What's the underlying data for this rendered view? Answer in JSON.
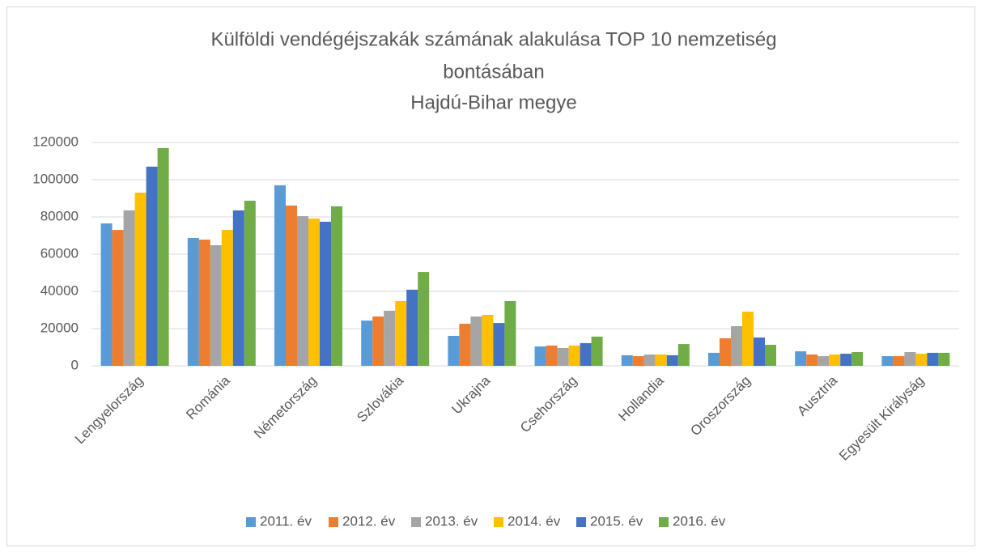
{
  "chart_data": {
    "type": "bar",
    "title": [
      "Külföldi vendégéjszakák számának alakulása TOP 10 nemzetiség",
      "bontásában",
      "Hajdú-Bihar megye"
    ],
    "categories": [
      "Lengyelország",
      "Románia",
      "Németország",
      "Szlovákia",
      "Ukrajna",
      "Csehország",
      "Hollandia",
      "Oroszország",
      "Ausztria",
      "Egyesült Királyság"
    ],
    "series": [
      {
        "name": "2011. év",
        "color": "#5b9bd5",
        "values": [
          76500,
          68700,
          97000,
          24300,
          16100,
          10400,
          5700,
          7000,
          7800,
          5200
        ]
      },
      {
        "name": "2012. év",
        "color": "#ed7d31",
        "values": [
          73000,
          67800,
          86100,
          26500,
          22600,
          10900,
          5200,
          14800,
          6100,
          5200
        ]
      },
      {
        "name": "2013. év",
        "color": "#a5a5a5",
        "values": [
          83500,
          64800,
          80400,
          29600,
          26500,
          9600,
          6100,
          21300,
          5200,
          7400
        ]
      },
      {
        "name": "2014. év",
        "color": "#ffc000",
        "values": [
          93000,
          73000,
          79100,
          34800,
          27400,
          10900,
          6100,
          29100,
          6100,
          6500
        ]
      },
      {
        "name": "2015. év",
        "color": "#4472c4",
        "values": [
          107000,
          83500,
          77400,
          40900,
          23000,
          12200,
          5700,
          15200,
          6500,
          7000
        ]
      },
      {
        "name": "2016. év",
        "color": "#70ad47",
        "values": [
          117000,
          88700,
          85700,
          50400,
          34800,
          15700,
          11700,
          11300,
          7400,
          7000
        ]
      }
    ],
    "ylim": [
      0,
      120000
    ],
    "yticks": [
      0,
      20000,
      40000,
      60000,
      80000,
      100000,
      120000
    ],
    "grid": true,
    "legend": "bottom"
  }
}
